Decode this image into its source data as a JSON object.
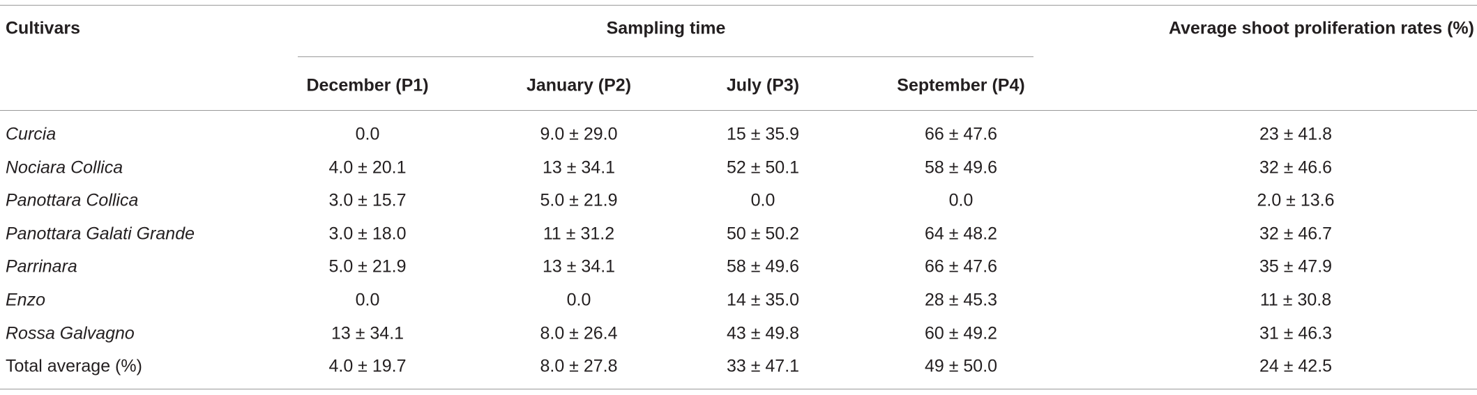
{
  "table": {
    "header": {
      "cultivars": "Cultivars",
      "sampling_time": "Sampling time",
      "periods": [
        "December (P1)",
        "January (P2)",
        "July (P3)",
        "September (P4)"
      ],
      "average": "Average shoot proliferation rates (%)"
    },
    "rows": [
      [
        "Curcia",
        "0.0",
        "9.0 ± 29.0",
        "15 ± 35.9",
        "66 ± 47.6",
        "23 ± 41.8"
      ],
      [
        "Nociara Collica",
        "4.0 ± 20.1",
        "13 ± 34.1",
        "52 ± 50.1",
        "58 ± 49.6",
        "32 ± 46.6"
      ],
      [
        "Panottara Collica",
        "3.0 ± 15.7",
        "5.0 ± 21.9",
        "0.0",
        "0.0",
        "2.0 ± 13.6"
      ],
      [
        "Panottara Galati Grande",
        "3.0 ± 18.0",
        "11 ± 31.2",
        "50 ± 50.2",
        "64 ± 48.2",
        "32 ± 46.7"
      ],
      [
        "Parrinara",
        "5.0 ± 21.9",
        "13 ± 34.1",
        "58 ± 49.6",
        "66 ± 47.6",
        "35 ± 47.9"
      ],
      [
        "Enzo",
        "0.0",
        "0.0",
        "14 ± 35.0",
        "28 ± 45.3",
        "11 ± 30.8"
      ],
      [
        "Rossa Galvagno",
        "13 ± 34.1",
        "8.0 ± 26.4",
        "43 ± 49.8",
        "60 ± 49.2",
        "31 ± 46.3"
      ],
      [
        "Total average (%)",
        "4.0 ± 19.7",
        "8.0 ± 27.8",
        "33 ± 47.1",
        "49 ± 50.0",
        "24 ± 42.5"
      ]
    ]
  }
}
